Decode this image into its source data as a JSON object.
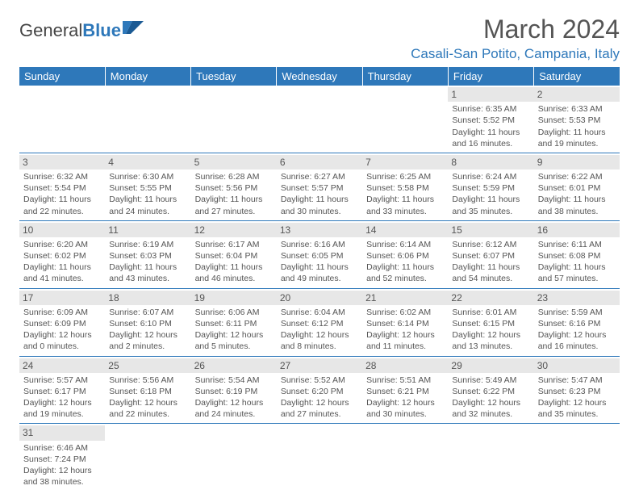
{
  "logo": {
    "part1": "General",
    "part2": "Blue"
  },
  "title": "March 2024",
  "location": "Casali-San Potito, Campania, Italy",
  "colors": {
    "header_bg": "#2e78ba",
    "header_text": "#ffffff",
    "daynum_bg": "#e7e7e7",
    "text": "#555555",
    "logo_blue": "#2e78ba"
  },
  "typography": {
    "title_fontsize": 32,
    "location_fontsize": 17,
    "weekday_fontsize": 13,
    "cell_fontsize": 10.5
  },
  "weekdays": [
    "Sunday",
    "Monday",
    "Tuesday",
    "Wednesday",
    "Thursday",
    "Friday",
    "Saturday"
  ],
  "labels": {
    "sunrise": "Sunrise:",
    "sunset": "Sunset:",
    "daylight": "Daylight:"
  },
  "leading_blanks": 5,
  "days": [
    {
      "n": 1,
      "sunrise": "6:35 AM",
      "sunset": "5:52 PM",
      "daylight": "11 hours and 16 minutes."
    },
    {
      "n": 2,
      "sunrise": "6:33 AM",
      "sunset": "5:53 PM",
      "daylight": "11 hours and 19 minutes."
    },
    {
      "n": 3,
      "sunrise": "6:32 AM",
      "sunset": "5:54 PM",
      "daylight": "11 hours and 22 minutes."
    },
    {
      "n": 4,
      "sunrise": "6:30 AM",
      "sunset": "5:55 PM",
      "daylight": "11 hours and 24 minutes."
    },
    {
      "n": 5,
      "sunrise": "6:28 AM",
      "sunset": "5:56 PM",
      "daylight": "11 hours and 27 minutes."
    },
    {
      "n": 6,
      "sunrise": "6:27 AM",
      "sunset": "5:57 PM",
      "daylight": "11 hours and 30 minutes."
    },
    {
      "n": 7,
      "sunrise": "6:25 AM",
      "sunset": "5:58 PM",
      "daylight": "11 hours and 33 minutes."
    },
    {
      "n": 8,
      "sunrise": "6:24 AM",
      "sunset": "5:59 PM",
      "daylight": "11 hours and 35 minutes."
    },
    {
      "n": 9,
      "sunrise": "6:22 AM",
      "sunset": "6:01 PM",
      "daylight": "11 hours and 38 minutes."
    },
    {
      "n": 10,
      "sunrise": "6:20 AM",
      "sunset": "6:02 PM",
      "daylight": "11 hours and 41 minutes."
    },
    {
      "n": 11,
      "sunrise": "6:19 AM",
      "sunset": "6:03 PM",
      "daylight": "11 hours and 43 minutes."
    },
    {
      "n": 12,
      "sunrise": "6:17 AM",
      "sunset": "6:04 PM",
      "daylight": "11 hours and 46 minutes."
    },
    {
      "n": 13,
      "sunrise": "6:16 AM",
      "sunset": "6:05 PM",
      "daylight": "11 hours and 49 minutes."
    },
    {
      "n": 14,
      "sunrise": "6:14 AM",
      "sunset": "6:06 PM",
      "daylight": "11 hours and 52 minutes."
    },
    {
      "n": 15,
      "sunrise": "6:12 AM",
      "sunset": "6:07 PM",
      "daylight": "11 hours and 54 minutes."
    },
    {
      "n": 16,
      "sunrise": "6:11 AM",
      "sunset": "6:08 PM",
      "daylight": "11 hours and 57 minutes."
    },
    {
      "n": 17,
      "sunrise": "6:09 AM",
      "sunset": "6:09 PM",
      "daylight": "12 hours and 0 minutes."
    },
    {
      "n": 18,
      "sunrise": "6:07 AM",
      "sunset": "6:10 PM",
      "daylight": "12 hours and 2 minutes."
    },
    {
      "n": 19,
      "sunrise": "6:06 AM",
      "sunset": "6:11 PM",
      "daylight": "12 hours and 5 minutes."
    },
    {
      "n": 20,
      "sunrise": "6:04 AM",
      "sunset": "6:12 PM",
      "daylight": "12 hours and 8 minutes."
    },
    {
      "n": 21,
      "sunrise": "6:02 AM",
      "sunset": "6:14 PM",
      "daylight": "12 hours and 11 minutes."
    },
    {
      "n": 22,
      "sunrise": "6:01 AM",
      "sunset": "6:15 PM",
      "daylight": "12 hours and 13 minutes."
    },
    {
      "n": 23,
      "sunrise": "5:59 AM",
      "sunset": "6:16 PM",
      "daylight": "12 hours and 16 minutes."
    },
    {
      "n": 24,
      "sunrise": "5:57 AM",
      "sunset": "6:17 PM",
      "daylight": "12 hours and 19 minutes."
    },
    {
      "n": 25,
      "sunrise": "5:56 AM",
      "sunset": "6:18 PM",
      "daylight": "12 hours and 22 minutes."
    },
    {
      "n": 26,
      "sunrise": "5:54 AM",
      "sunset": "6:19 PM",
      "daylight": "12 hours and 24 minutes."
    },
    {
      "n": 27,
      "sunrise": "5:52 AM",
      "sunset": "6:20 PM",
      "daylight": "12 hours and 27 minutes."
    },
    {
      "n": 28,
      "sunrise": "5:51 AM",
      "sunset": "6:21 PM",
      "daylight": "12 hours and 30 minutes."
    },
    {
      "n": 29,
      "sunrise": "5:49 AM",
      "sunset": "6:22 PM",
      "daylight": "12 hours and 32 minutes."
    },
    {
      "n": 30,
      "sunrise": "5:47 AM",
      "sunset": "6:23 PM",
      "daylight": "12 hours and 35 minutes."
    },
    {
      "n": 31,
      "sunrise": "6:46 AM",
      "sunset": "7:24 PM",
      "daylight": "12 hours and 38 minutes."
    }
  ]
}
